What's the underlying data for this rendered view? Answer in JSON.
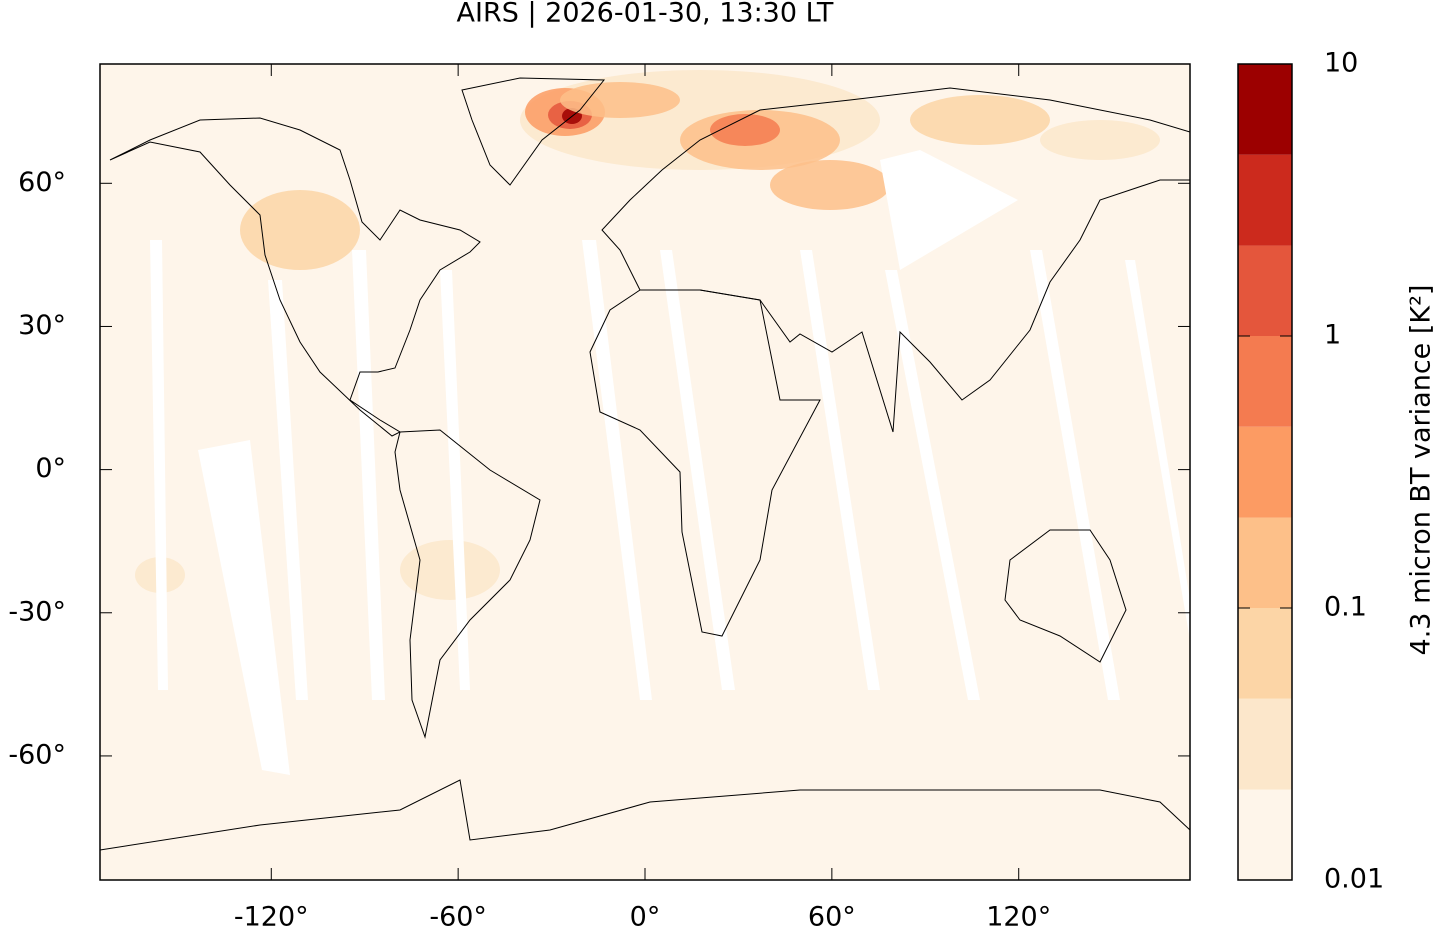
{
  "title": "AIRS | 2026-01-30, 13:30 LT",
  "map": {
    "xlim": [
      -175,
      175
    ],
    "ylim": [
      -86,
      85
    ],
    "xticks": [
      {
        "value": -120,
        "label": "-120°"
      },
      {
        "value": -60,
        "label": "-60°"
      },
      {
        "value": 0,
        "label": "0°"
      },
      {
        "value": 60,
        "label": "60°"
      },
      {
        "value": 120,
        "label": "120°"
      }
    ],
    "yticks": [
      {
        "value": 60,
        "label": "60°"
      },
      {
        "value": 30,
        "label": "30°"
      },
      {
        "value": 0,
        "label": "0°"
      },
      {
        "value": -30,
        "label": "-30°"
      },
      {
        "value": -60,
        "label": "-60°"
      }
    ]
  },
  "colorbar": {
    "label": "4.3 micron BT variance [K²]",
    "log_scale": true,
    "lim": [
      0.01,
      10
    ],
    "ticks": [
      0.01,
      0.1,
      1,
      10
    ],
    "levels": [
      0.01,
      0.0215,
      0.0464,
      0.1,
      0.215,
      0.464,
      1,
      2.15,
      4.64,
      10
    ],
    "colors": [
      "#fef5ea",
      "#fce7cb",
      "#fcd5a6",
      "#fdc089",
      "#fc9b63",
      "#f47b50",
      "#e4563c",
      "#cc2a1d",
      "#9c0000"
    ]
  }
}
